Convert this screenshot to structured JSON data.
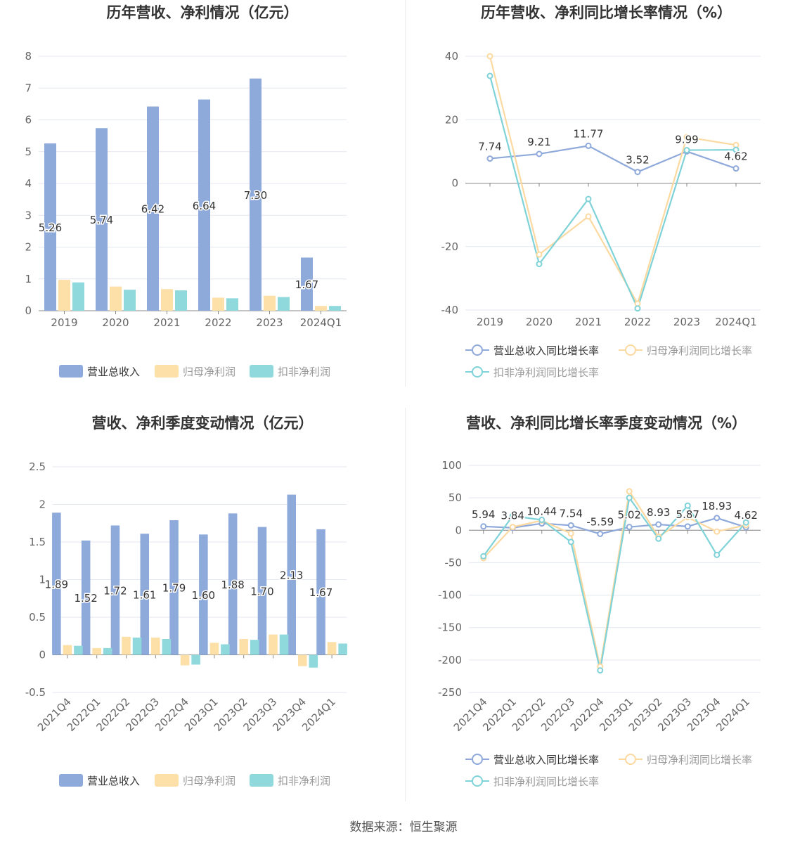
{
  "footer": {
    "source": "数据来源：恒生聚源"
  },
  "colors": {
    "revenue": "#8eaadb",
    "netprofit": "#fddfa8",
    "deducted": "#8fd8dc",
    "revenue_line": "#8ea9da",
    "netprofit_line": "#fcd9a0",
    "deducted_line": "#7fd3d8"
  },
  "chart_data": [
    {
      "id": "annual-amounts",
      "type": "bar",
      "title": "历年营收、净利情况（亿元）",
      "categories": [
        "2019",
        "2020",
        "2021",
        "2022",
        "2023",
        "2024Q1"
      ],
      "ylim": [
        0,
        8
      ],
      "yticks": [
        0,
        1,
        2,
        3,
        4,
        5,
        6,
        7,
        8
      ],
      "grid": true,
      "legend_position": "bottom",
      "series": [
        {
          "name": "营业总收入",
          "values": [
            5.26,
            5.74,
            6.42,
            6.64,
            7.3,
            1.67
          ],
          "labels": [
            "5.26",
            "5.74",
            "6.42",
            "6.64",
            "7.30",
            "1.67"
          ]
        },
        {
          "name": "归母净利润",
          "values": [
            0.97,
            0.76,
            0.68,
            0.41,
            0.47,
            0.15
          ]
        },
        {
          "name": "扣非净利润",
          "values": [
            0.89,
            0.66,
            0.64,
            0.39,
            0.43,
            0.15
          ]
        }
      ]
    },
    {
      "id": "annual-growth",
      "type": "line",
      "title": "历年营收、净利同比增长率情况（%）",
      "categories": [
        "2019",
        "2020",
        "2021",
        "2022",
        "2023",
        "2024Q1"
      ],
      "ylim": [
        -40,
        40
      ],
      "yticks": [
        -40,
        -20,
        0,
        20,
        40
      ],
      "grid": true,
      "legend_position": "bottom",
      "series": [
        {
          "name": "营业总收入同比增长率",
          "values": [
            7.74,
            9.21,
            11.77,
            3.52,
            9.99,
            4.62
          ],
          "labels": [
            "7.74",
            "9.21",
            "11.77",
            "3.52",
            "9.99",
            "4.62"
          ]
        },
        {
          "name": "归母净利润同比增长率",
          "values": [
            40.0,
            -22.5,
            -10.5,
            -38.0,
            14.5,
            12.0
          ]
        },
        {
          "name": "扣非净利润同比增长率",
          "values": [
            33.8,
            -25.5,
            -5.0,
            -39.5,
            10.4,
            10.5
          ]
        }
      ]
    },
    {
      "id": "quarterly-amounts",
      "type": "bar",
      "title": "营收、净利季度变动情况（亿元）",
      "categories": [
        "2021Q4",
        "2022Q1",
        "2022Q2",
        "2022Q3",
        "2022Q4",
        "2023Q1",
        "2023Q2",
        "2023Q3",
        "2023Q4",
        "2024Q1"
      ],
      "ylim": [
        -0.5,
        2.5
      ],
      "yticks": [
        -0.5,
        0,
        0.5,
        1,
        1.5,
        2,
        2.5
      ],
      "grid": true,
      "legend_position": "bottom",
      "series": [
        {
          "name": "营业总收入",
          "values": [
            1.89,
            1.52,
            1.72,
            1.61,
            1.79,
            1.6,
            1.88,
            1.7,
            2.13,
            1.67
          ],
          "labels": [
            "1.89",
            "1.52",
            "1.72",
            "1.61",
            "1.79",
            "1.60",
            "1.88",
            "1.70",
            "2.13",
            "1.67"
          ]
        },
        {
          "name": "归母净利润",
          "values": [
            0.13,
            0.09,
            0.24,
            0.23,
            -0.14,
            0.16,
            0.21,
            0.27,
            -0.15,
            0.17
          ]
        },
        {
          "name": "扣非净利润",
          "values": [
            0.12,
            0.09,
            0.23,
            0.21,
            -0.13,
            0.14,
            0.2,
            0.27,
            -0.17,
            0.15
          ]
        }
      ]
    },
    {
      "id": "quarterly-growth",
      "type": "line",
      "title": "营收、净利同比增长率季度变动情况（%）",
      "categories": [
        "2021Q4",
        "2022Q1",
        "2022Q2",
        "2022Q3",
        "2022Q4",
        "2023Q1",
        "2023Q2",
        "2023Q3",
        "2023Q4",
        "2024Q1"
      ],
      "ylim": [
        -250,
        100
      ],
      "yticks": [
        -250,
        -200,
        -150,
        -100,
        -50,
        0,
        50,
        100
      ],
      "grid": true,
      "legend_position": "bottom",
      "series": [
        {
          "name": "营业总收入同比增长率",
          "values": [
            5.94,
            3.84,
            10.44,
            7.54,
            -5.59,
            5.02,
            8.93,
            5.87,
            18.93,
            4.62
          ],
          "labels": [
            "5.94",
            "3.84",
            "10.44",
            "7.54",
            "-5.59",
            "5.02",
            "8.93",
            "5.87",
            "18.93",
            "4.62"
          ]
        },
        {
          "name": "归母净利润同比增长率",
          "values": [
            -43,
            5,
            15,
            -5,
            -210,
            60,
            -10,
            20,
            -2,
            8
          ]
        },
        {
          "name": "扣非净利润同比增长率",
          "values": [
            -40,
            22,
            16,
            -18,
            -216,
            50,
            -13,
            38,
            -38,
            12
          ]
        }
      ]
    }
  ]
}
